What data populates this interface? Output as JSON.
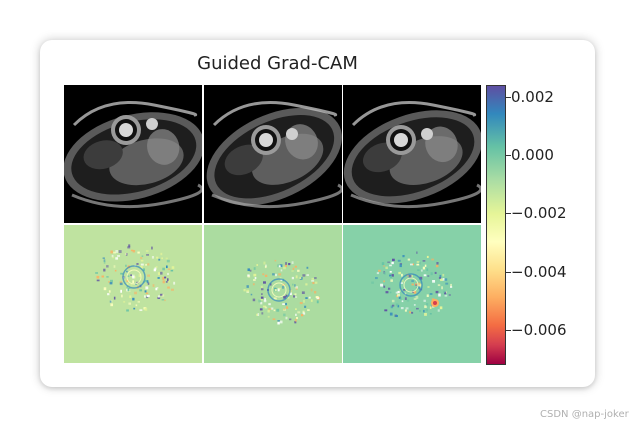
{
  "chart_data": {
    "type": "heatmap",
    "title": "Guided Grad-CAM",
    "layout": "2 rows x 3 columns of image panels with shared colorbar",
    "rows": [
      {
        "content": "cardiac MRI short-axis slices (grayscale)",
        "panels": 3
      },
      {
        "content": "guided grad-cam attribution maps",
        "panels": 3
      }
    ],
    "colormap": "Spectral",
    "colorbar": {
      "range": [
        -0.0072,
        0.0024
      ],
      "ticks": [
        0.002,
        0.0,
        -0.002,
        -0.004,
        -0.006
      ],
      "tick_labels": [
        "0.002",
        "0.000",
        "−0.002",
        "−0.004",
        "−0.006"
      ]
    },
    "attribution_backgrounds": [
      "#bfe3a0",
      "#abdca0",
      "#86d1a8"
    ]
  },
  "watermark": "CSDN @nap-joker"
}
